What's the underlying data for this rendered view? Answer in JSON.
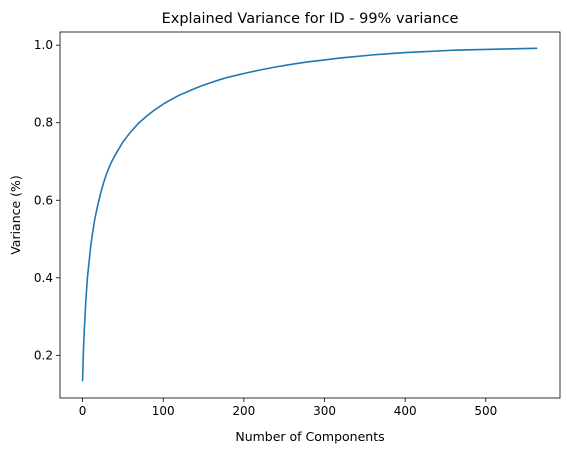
{
  "chart_data": {
    "type": "line",
    "title": "Explained Variance for ID - 99% variance",
    "xlabel": "Number of Components",
    "ylabel": "Variance (%)",
    "xlim": [
      -28,
      592
    ],
    "ylim": [
      0.09,
      1.034
    ],
    "xticks": [
      0,
      100,
      200,
      300,
      400,
      500
    ],
    "yticks": [
      0.2,
      0.4,
      0.6,
      0.8,
      1.0
    ],
    "ytick_labels": [
      "0.2",
      "0.4",
      "0.6",
      "0.8",
      "1.0"
    ],
    "grid": false,
    "legend": "none",
    "series": [
      {
        "color": "#1f77b4",
        "x": [
          0,
          1,
          2,
          3,
          4,
          5,
          6,
          8,
          10,
          12,
          15,
          18,
          22,
          26,
          30,
          35,
          40,
          45,
          50,
          55,
          60,
          70,
          80,
          90,
          100,
          110,
          120,
          130,
          140,
          150,
          160,
          170,
          180,
          190,
          200,
          220,
          240,
          260,
          280,
          300,
          320,
          340,
          360,
          380,
          400,
          420,
          440,
          460,
          480,
          500,
          520,
          540,
          563
        ],
        "y": [
          0.135,
          0.21,
          0.26,
          0.3,
          0.34,
          0.37,
          0.4,
          0.44,
          0.48,
          0.51,
          0.55,
          0.58,
          0.615,
          0.645,
          0.67,
          0.695,
          0.715,
          0.733,
          0.75,
          0.764,
          0.777,
          0.8,
          0.818,
          0.834,
          0.848,
          0.86,
          0.871,
          0.88,
          0.889,
          0.897,
          0.904,
          0.911,
          0.917,
          0.922,
          0.927,
          0.936,
          0.944,
          0.951,
          0.957,
          0.962,
          0.967,
          0.971,
          0.975,
          0.978,
          0.981,
          0.983,
          0.985,
          0.987,
          0.988,
          0.989,
          0.99,
          0.991,
          0.992
        ]
      }
    ]
  }
}
